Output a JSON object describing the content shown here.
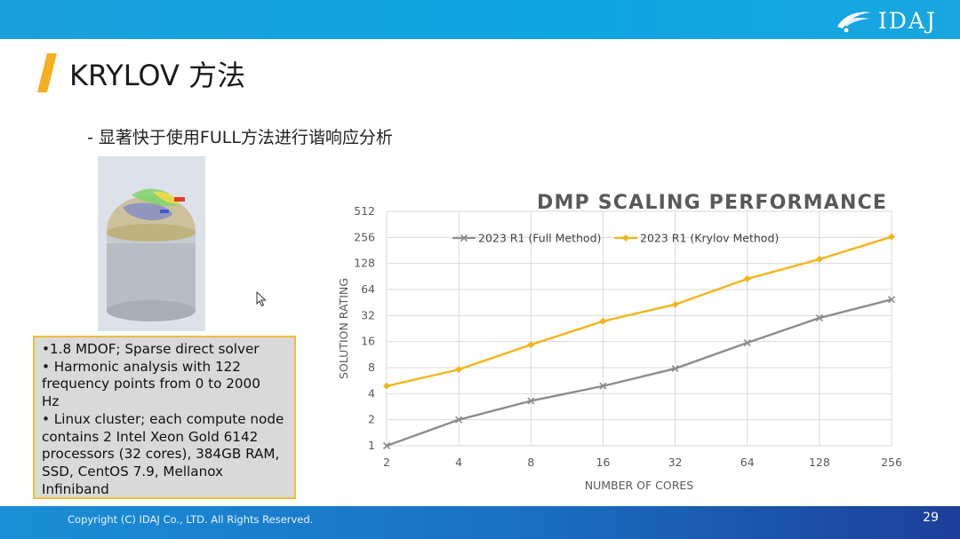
{
  "header": {
    "logo_text": "IDAJ",
    "logo_icon": "swoosh-logo-icon",
    "bar_color": "#14a3df"
  },
  "slide": {
    "title": "KRYLOV 方法",
    "bullet": "-  显著快于使用FULL方法进行谐响应分析",
    "accent_color": "#f2b01e",
    "info_lines": [
      "•1.8 MDOF; Sparse direct solver",
      "• Harmonic analysis with 122",
      "frequency points from 0 to 2000",
      "Hz",
      "• Linux cluster; each compute node",
      "contains 2 Intel Xeon Gold 6142",
      "processors (32 cores), 384GB RAM,",
      "SSD, CentOS 7.9, Mellanox",
      "Infiniband"
    ]
  },
  "chart_data": {
    "type": "line",
    "title": "DMP SCALING PERFORMANCE",
    "xlabel": "NUMBER OF CORES",
    "ylabel": "SOLUTION RATING",
    "x": [
      2,
      4,
      8,
      16,
      32,
      64,
      128,
      256
    ],
    "y_ticks": [
      1,
      2,
      4,
      8,
      16,
      32,
      64,
      128,
      256,
      512
    ],
    "y_scale": "log2",
    "ylim": [
      1,
      512
    ],
    "grid": true,
    "legend_position": "top",
    "series": [
      {
        "name": "2023 R1 (Full Method)",
        "color": "#8c8c8c",
        "marker": "x",
        "values": [
          1.0,
          2.0,
          3.3,
          4.9,
          7.8,
          15.5,
          30,
          49
        ]
      },
      {
        "name": "2023 R1 (Krylov Method)",
        "color": "#f2b418",
        "marker": "diamond",
        "values": [
          4.9,
          7.6,
          14.7,
          27.5,
          43,
          85,
          143,
          260
        ]
      }
    ]
  },
  "footer": {
    "copyright": "Copyright (C)  IDAJ Co., LTD. All Rights Reserved.",
    "page_number": "29"
  }
}
